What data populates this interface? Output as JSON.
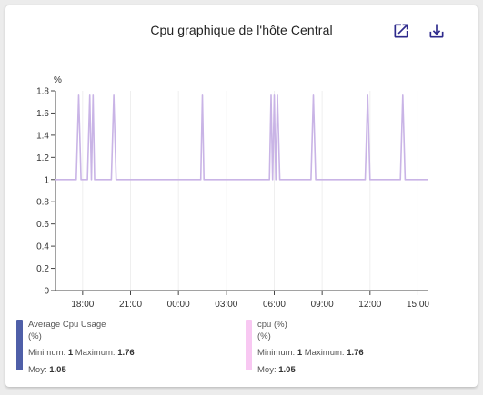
{
  "header": {
    "title": "Cpu graphique de l'hôte Central",
    "open_icon": "open-in-new-icon",
    "download_icon": "download-icon"
  },
  "colors": {
    "accent": "#2e2a8c",
    "series_line": "#c9b4e6",
    "legend_avg": "#4f5fa8",
    "legend_cpu": "#f8c8f2"
  },
  "legend": [
    {
      "name": "Average Cpu Usage",
      "unit": "(%)",
      "min_label": "Minimum:",
      "min": "1",
      "max_label": "Maximum:",
      "max": "1.76",
      "avg_label": "Moy:",
      "avg": "1.05"
    },
    {
      "name": "cpu (%)",
      "unit": "(%)",
      "min_label": "Minimum:",
      "min": "1",
      "max_label": "Maximum:",
      "max": "1.76",
      "avg_label": "Moy:",
      "avg": "1.05"
    }
  ],
  "chart_data": {
    "type": "line",
    "ylabel": "%",
    "ylim": [
      0,
      1.8
    ],
    "yticks": [
      "0",
      "0.2",
      "0.4",
      "0.6",
      "0.8",
      "1",
      "1.2",
      "1.4",
      "1.6",
      "1.8"
    ],
    "xlim": [
      16.3,
      39.6
    ],
    "xticks": [
      {
        "label": "18:00",
        "value": 18
      },
      {
        "label": "21:00",
        "value": 21
      },
      {
        "label": "00:00",
        "value": 24
      },
      {
        "label": "03:00",
        "value": 27
      },
      {
        "label": "06:00",
        "value": 30
      },
      {
        "label": "09:00",
        "value": 33
      },
      {
        "label": "12:00",
        "value": 36
      },
      {
        "label": "15:00",
        "value": 39
      }
    ],
    "grid": "vertical",
    "series": [
      {
        "name": "cpu (%)",
        "x": [
          16.3,
          17.6,
          17.75,
          17.9,
          18.3,
          18.45,
          18.55,
          18.65,
          18.75,
          18.9,
          19.8,
          19.95,
          20.1,
          25.4,
          25.5,
          25.6,
          29.7,
          29.8,
          29.9,
          30.0,
          30.1,
          30.2,
          30.35,
          32.3,
          32.45,
          32.6,
          35.7,
          35.85,
          36.0,
          37.9,
          38.05,
          38.2,
          39.6
        ],
        "values": [
          1,
          1,
          1.76,
          1,
          1,
          1.76,
          1,
          1.76,
          1,
          1,
          1,
          1.76,
          1,
          1,
          1.76,
          1,
          1,
          1.76,
          1,
          1.76,
          1,
          1.76,
          1,
          1,
          1.76,
          1,
          1,
          1.76,
          1,
          1,
          1.76,
          1,
          1
        ]
      }
    ]
  }
}
